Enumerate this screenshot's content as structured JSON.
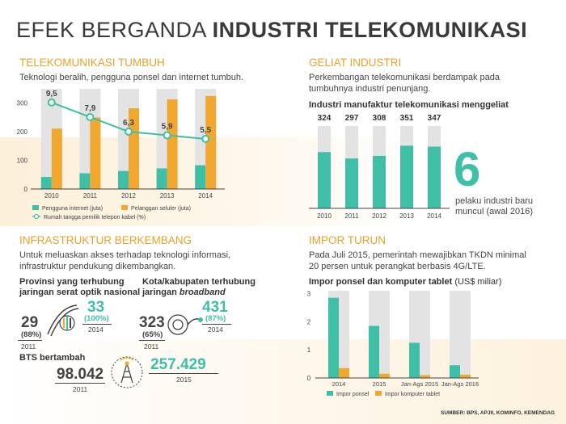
{
  "title": {
    "light": "EFEK BERGANDA",
    "bold": "INDUSTRI TELEKOMUNIKASI"
  },
  "colors": {
    "teal": "#3fbfa6",
    "orange": "#f0a830",
    "gray_bar": "#e3e3e3",
    "heading": "#e9a12a"
  },
  "telekom": {
    "heading": "TELEKOMUNIKASI TUMBUH",
    "desc": "Teknologi beralih, pengguna ponsel dan internet tumbuh."
  },
  "geliat": {
    "heading": "GELIAT INDUSTRI",
    "desc1": "Perkembangan telekomunikasi berdampak pada",
    "desc2": "tumbuhnya industri penunjang.",
    "chart_title": "Industri manufaktur telekomunikasi menggeliat",
    "big_number": "6",
    "note1": "pelaku industri baru",
    "note2": "muncul (awal 2016)"
  },
  "infra": {
    "heading": "INFRASTRUKTUR BERKEMBANG",
    "desc1": "Untuk meluaskan akses terhadap teknologi informasi,",
    "desc2": "infrastruktur pendukung dikembangkan.",
    "prov_title1": "Provinsi yang terhubung",
    "prov_title2": "jaringan serat optik nasional",
    "prov_old": "29",
    "prov_old_pct": "(88%)",
    "prov_old_year": "2011",
    "prov_new": "33",
    "prov_new_pct": "(100%)",
    "prov_new_year": "2014",
    "kota_title1": "Kota/kabupaten terhubung",
    "kota_title2_a": "jaringan ",
    "kota_title2_b": "broadband",
    "kota_old": "323",
    "kota_old_pct": "(65%)",
    "kota_old_year": "2011",
    "kota_new": "431",
    "kota_new_pct": "(87%)",
    "kota_new_year": "2014",
    "bts_title": "BTS bertambah",
    "bts_old": "98.042",
    "bts_old_year": "2011",
    "bts_new": "257.429",
    "bts_new_year": "2015"
  },
  "impor": {
    "heading": "IMPOR TURUN",
    "desc1": "Pada Juli 2015, pemerintah mewajibkan TKDN minimal",
    "desc2": "20 persen untuk perangkat berbasis 4G/LTE.",
    "chart_title_bold": "Impor ponsel dan komputer tablet",
    "chart_title_light": "(US$ miliar)"
  },
  "source": "SUMBER: BPS, APJII, KOMINFO, KEMENDAG",
  "chart_data": [
    {
      "type": "bar",
      "categories": [
        "2010",
        "2011",
        "2012",
        "2013",
        "2014"
      ],
      "series": [
        {
          "name": "Pengguna internet (juta)",
          "values": [
            42,
            55,
            63,
            72,
            83
          ]
        },
        {
          "name": "Pelanggan seluler (juta)",
          "values": [
            211,
            250,
            282,
            313,
            325
          ]
        },
        {
          "name": "Rumah tangga pemilik telepon kabel (%)",
          "type": "line",
          "values": [
            9.5,
            7.9,
            6.3,
            5.9,
            5.5
          ]
        }
      ],
      "line_labels": [
        "9,5",
        "7,9",
        "6,3",
        "5,9",
        "5,5"
      ],
      "ylim": [
        0,
        350
      ],
      "yticks": [
        "0",
        "100",
        "200",
        "300"
      ]
    },
    {
      "type": "bar",
      "categories": [
        "2010",
        "2011",
        "2012",
        "2013",
        "2014"
      ],
      "values": [
        324,
        297,
        308,
        351,
        347
      ],
      "title": "Industri manufaktur telekomunikasi menggeliat"
    },
    {
      "type": "bar",
      "categories": [
        "2014",
        "2015",
        "Jan-Ags 2015",
        "Jan-Ags 2016"
      ],
      "series": [
        {
          "name": "Impor ponsel",
          "values": [
            2.85,
            1.85,
            1.25,
            0.45
          ]
        },
        {
          "name": "Impor komputer tablet",
          "values": [
            0.35,
            0.15,
            0.1,
            0.12
          ]
        }
      ],
      "title": "Impor ponsel dan komputer tablet (US$ miliar)",
      "ylim": [
        0,
        3.1
      ],
      "yticks": [
        "0",
        "1",
        "2",
        "3"
      ]
    }
  ]
}
